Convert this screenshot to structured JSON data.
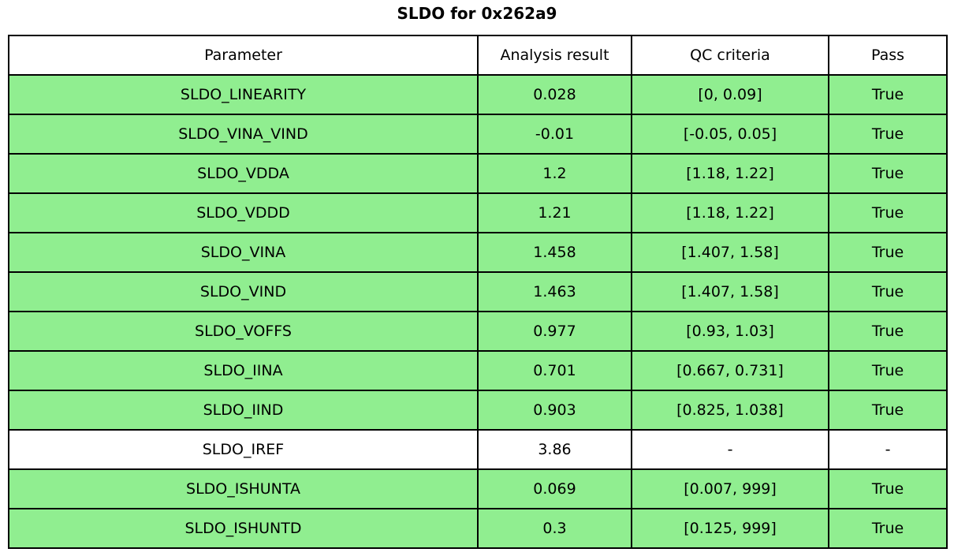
{
  "title": "SLDO for 0x262a9",
  "colors": {
    "pass_row_bg": "#90EE90",
    "neutral_row_bg": "#FFFFFF",
    "header_bg": "#FFFFFF",
    "border": "#000000",
    "text": "#000000"
  },
  "chart_data": {
    "type": "table",
    "title": "SLDO for 0x262a9",
    "columns": [
      "Parameter",
      "Analysis result",
      "QC criteria",
      "Pass"
    ],
    "rows": [
      {
        "parameter": "SLDO_LINEARITY",
        "result": "0.028",
        "criteria": "[0, 0.09]",
        "pass": "True",
        "highlight": true
      },
      {
        "parameter": "SLDO_VINA_VIND",
        "result": "-0.01",
        "criteria": "[-0.05, 0.05]",
        "pass": "True",
        "highlight": true
      },
      {
        "parameter": "SLDO_VDDA",
        "result": "1.2",
        "criteria": "[1.18, 1.22]",
        "pass": "True",
        "highlight": true
      },
      {
        "parameter": "SLDO_VDDD",
        "result": "1.21",
        "criteria": "[1.18, 1.22]",
        "pass": "True",
        "highlight": true
      },
      {
        "parameter": "SLDO_VINA",
        "result": "1.458",
        "criteria": "[1.407, 1.58]",
        "pass": "True",
        "highlight": true
      },
      {
        "parameter": "SLDO_VIND",
        "result": "1.463",
        "criteria": "[1.407, 1.58]",
        "pass": "True",
        "highlight": true
      },
      {
        "parameter": "SLDO_VOFFS",
        "result": "0.977",
        "criteria": "[0.93, 1.03]",
        "pass": "True",
        "highlight": true
      },
      {
        "parameter": "SLDO_IINA",
        "result": "0.701",
        "criteria": "[0.667, 0.731]",
        "pass": "True",
        "highlight": true
      },
      {
        "parameter": "SLDO_IIND",
        "result": "0.903",
        "criteria": "[0.825, 1.038]",
        "pass": "True",
        "highlight": true
      },
      {
        "parameter": "SLDO_IREF",
        "result": "3.86",
        "criteria": "-",
        "pass": "-",
        "highlight": false
      },
      {
        "parameter": "SLDO_ISHUNTA",
        "result": "0.069",
        "criteria": "[0.007, 999]",
        "pass": "True",
        "highlight": true
      },
      {
        "parameter": "SLDO_ISHUNTD",
        "result": "0.3",
        "criteria": "[0.125, 999]",
        "pass": "True",
        "highlight": true
      }
    ]
  }
}
